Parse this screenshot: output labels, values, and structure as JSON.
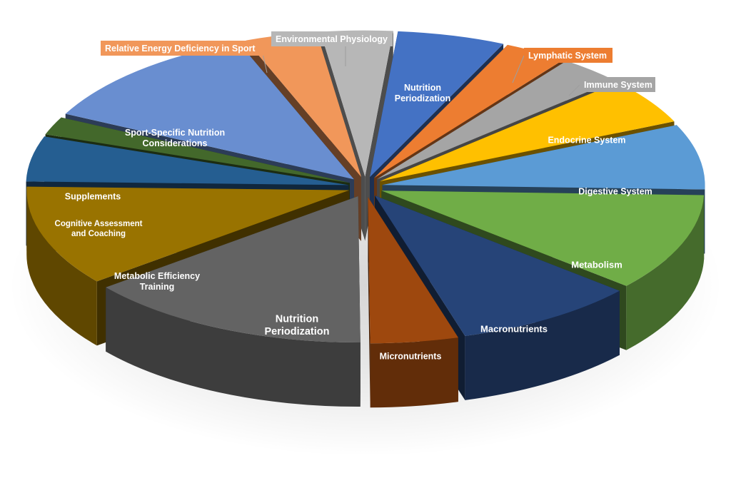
{
  "chart_data": {
    "type": "pie",
    "style": "3d-exploded",
    "title": "",
    "slices": [
      {
        "label": "Nutrition Periodization",
        "value": 5.4,
        "color": "#4472c4",
        "label_style": "inside"
      },
      {
        "label": "Lymphatic System",
        "value": 3.2,
        "color": "#ed7d31",
        "label_style": "callout"
      },
      {
        "label": "Immune System",
        "value": 3.2,
        "color": "#a5a5a5",
        "label_style": "callout"
      },
      {
        "label": "Endocrine System",
        "value": 5.1,
        "color": "#ffc000",
        "label_style": "inside"
      },
      {
        "label": "Digestive System",
        "value": 7.2,
        "color": "#5b9bd5",
        "label_style": "inside"
      },
      {
        "label": "Metabolism",
        "value": 10.8,
        "color": "#70ad47",
        "label_style": "inside"
      },
      {
        "label": "Macronutrients",
        "value": 9.2,
        "color": "#264478",
        "label_style": "inside"
      },
      {
        "label": "Micronutrients",
        "value": 4.4,
        "color": "#9e480e",
        "label_style": "inside"
      },
      {
        "label": "Nutrition Periodization",
        "value": 14.4,
        "color": "#636363",
        "label_style": "inside"
      },
      {
        "label": "Metabolic Efficiency Training",
        "value": 11.1,
        "color": "#997300",
        "label_style": "inside"
      },
      {
        "label": "Cognitive Assessment and Coaching",
        "value": 5.0,
        "color": "#255e91",
        "label_style": "inside"
      },
      {
        "label": "Supplements",
        "value": 2.0,
        "color": "#43682b",
        "label_style": "inside"
      },
      {
        "label": "Sport-Specific Nutrition Considerations",
        "value": 11.8,
        "color": "#698ed0",
        "label_style": "inside"
      },
      {
        "label": "Relative Energy Deficiency in Sport",
        "value": 3.6,
        "color": "#f1975a",
        "label_style": "callout"
      },
      {
        "label": "Environmental Physiology",
        "value": 3.6,
        "color": "#b7b7b7",
        "label_style": "callout"
      }
    ]
  }
}
